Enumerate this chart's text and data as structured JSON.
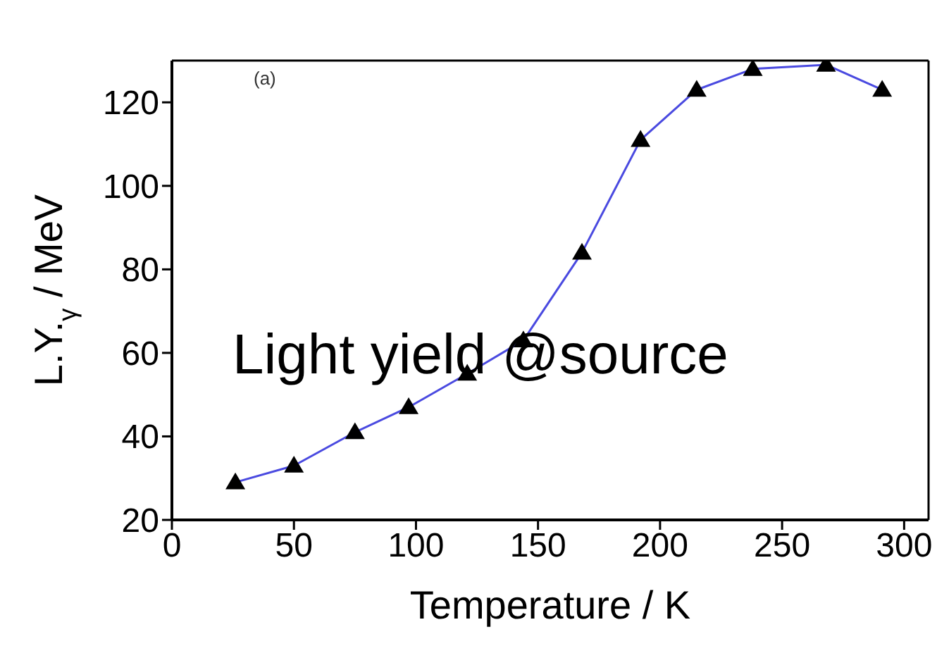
{
  "chart_data": {
    "type": "line",
    "xlabel": "Temperature / K",
    "ylabel": "L.Y.$_{γ}$ / MeV",
    "annotations": [
      "(a)",
      "Light yield @source"
    ],
    "x": [
      26,
      50,
      75,
      97,
      121,
      144,
      168,
      192,
      215,
      238,
      268,
      291
    ],
    "series": [
      {
        "color": "#4a4ae0",
        "values": [
          29,
          33,
          41,
          47,
          55,
          63,
          84,
          111,
          123,
          128,
          129,
          123
        ]
      }
    ],
    "xlim": [
      0,
      310
    ],
    "xticks": [
      0,
      50,
      100,
      150,
      200,
      250,
      300
    ],
    "ylim": [
      20,
      130
    ],
    "yticks": [
      20,
      40,
      60,
      80,
      100,
      120
    ],
    "grid": false,
    "legend": false,
    "marker": "triangle",
    "line_style": "solid"
  }
}
